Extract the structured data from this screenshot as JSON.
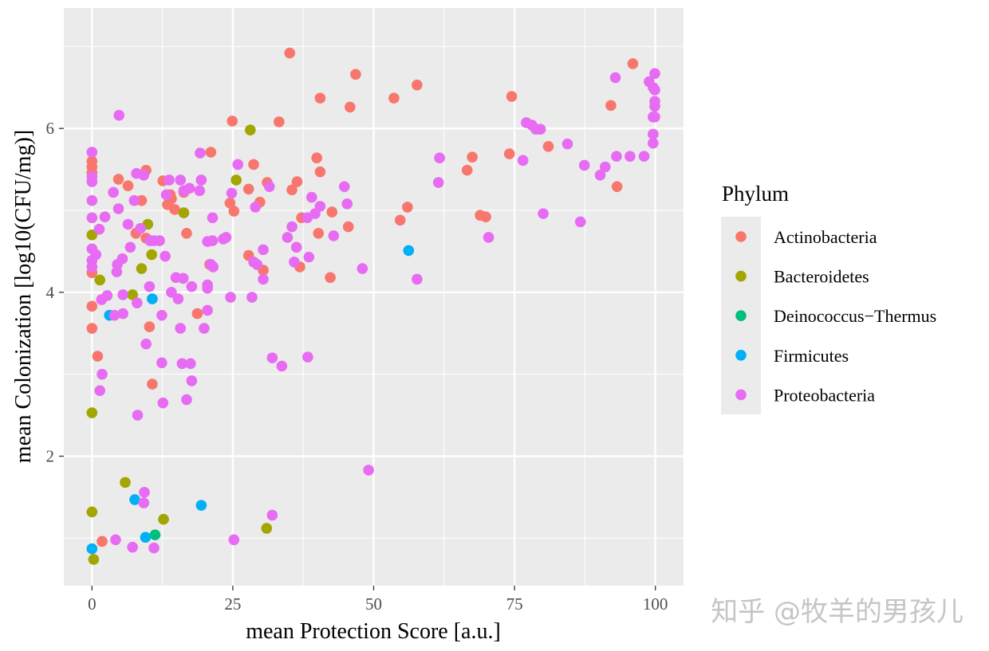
{
  "chart_data": {
    "type": "scatter",
    "title": "",
    "xlabel": "mean Protection Score [a.u.]",
    "ylabel": "mean Colonization [log10(CFU/mg)]",
    "xlim": [
      -5,
      105
    ],
    "ylim": [
      0.42,
      7.47
    ],
    "xticks": [
      0,
      25,
      50,
      75,
      100
    ],
    "xtick_labels": [
      "0",
      "25",
      "50",
      "75",
      "100"
    ],
    "yticks": [
      2,
      4,
      6
    ],
    "ytick_labels": [
      "2",
      "4",
      "6"
    ],
    "grid": true,
    "background": "#EBEBEB",
    "legend": {
      "title": "Phylum",
      "placement": "right"
    },
    "series": [
      {
        "name": "Actinobacteria",
        "color": "#F8766D",
        "points": [
          [
            0,
            5.6
          ],
          [
            0,
            5.53
          ],
          [
            0,
            5.46
          ],
          [
            0,
            4.24
          ],
          [
            0,
            3.83
          ],
          [
            0,
            3.56
          ],
          [
            1.0,
            3.22
          ],
          [
            1.8,
            0.96
          ],
          [
            4.7,
            5.38
          ],
          [
            6.4,
            5.3
          ],
          [
            8.8,
            5.12
          ],
          [
            9.6,
            5.49
          ],
          [
            7.8,
            4.72
          ],
          [
            9.6,
            4.66
          ],
          [
            12.6,
            5.36
          ],
          [
            13.9,
            5.19
          ],
          [
            14.1,
            5.14
          ],
          [
            13.4,
            5.07
          ],
          [
            14.7,
            5.01
          ],
          [
            16.3,
            5.22
          ],
          [
            16.8,
            4.72
          ],
          [
            21.1,
            5.71
          ],
          [
            20.9,
            4.34
          ],
          [
            24.5,
            5.09
          ],
          [
            25.2,
            4.99
          ],
          [
            24.9,
            6.09
          ],
          [
            10.2,
            3.58
          ],
          [
            18.7,
            3.74
          ],
          [
            10.7,
            2.88
          ],
          [
            28.7,
            5.56
          ],
          [
            27.8,
            5.26
          ],
          [
            27.8,
            4.45
          ],
          [
            29.8,
            5.1
          ],
          [
            30.4,
            4.27
          ],
          [
            31.1,
            5.34
          ],
          [
            33.2,
            6.08
          ],
          [
            35.1,
            6.92
          ],
          [
            36.4,
            5.35
          ],
          [
            35.5,
            5.25
          ],
          [
            37.2,
            4.91
          ],
          [
            36.9,
            4.31
          ],
          [
            39.9,
            5.64
          ],
          [
            40.5,
            5.47
          ],
          [
            40.2,
            4.72
          ],
          [
            40.5,
            6.37
          ],
          [
            42.6,
            4.98
          ],
          [
            42.3,
            4.18
          ],
          [
            45.5,
            4.8
          ],
          [
            45.8,
            6.26
          ],
          [
            46.8,
            6.66
          ],
          [
            53.6,
            6.37
          ],
          [
            54.7,
            4.88
          ],
          [
            56.0,
            5.04
          ],
          [
            57.7,
            6.53
          ],
          [
            66.6,
            5.49
          ],
          [
            67.5,
            5.65
          ],
          [
            68.9,
            4.94
          ],
          [
            69.9,
            4.92
          ],
          [
            74.1,
            5.69
          ],
          [
            74.5,
            6.39
          ],
          [
            81.0,
            5.78
          ],
          [
            92.1,
            6.28
          ],
          [
            93.2,
            5.29
          ],
          [
            96.0,
            6.79
          ]
        ]
      },
      {
        "name": "Bacteroidetes",
        "color": "#A3A500",
        "points": [
          [
            0,
            4.7
          ],
          [
            1.4,
            4.15
          ],
          [
            0,
            2.53
          ],
          [
            0,
            1.32
          ],
          [
            0.3,
            0.74
          ],
          [
            5.9,
            1.68
          ],
          [
            7.2,
            3.97
          ],
          [
            8.8,
            4.29
          ],
          [
            9.9,
            4.83
          ],
          [
            10.6,
            4.46
          ],
          [
            16.3,
            4.97
          ],
          [
            12.7,
            1.23
          ],
          [
            25.6,
            5.37
          ],
          [
            28.1,
            5.98
          ],
          [
            31.0,
            1.12
          ]
        ]
      },
      {
        "name": "Deinococcus−Thermus",
        "color": "#00BF7D",
        "points": [
          [
            11.2,
            1.04
          ]
        ]
      },
      {
        "name": "Firmicutes",
        "color": "#00B0F6",
        "points": [
          [
            0,
            0.87
          ],
          [
            3.1,
            3.72
          ],
          [
            7.6,
            1.47
          ],
          [
            9.5,
            1.01
          ],
          [
            10.7,
            3.92
          ],
          [
            19.4,
            1.4
          ],
          [
            56.2,
            4.51
          ]
        ]
      },
      {
        "name": "Proteobacteria",
        "color": "#E76BF3",
        "points": [
          [
            0,
            5.71
          ],
          [
            0,
            5.41
          ],
          [
            0,
            5.35
          ],
          [
            0,
            5.12
          ],
          [
            0,
            4.91
          ],
          [
            0,
            4.53
          ],
          [
            0.7,
            4.46
          ],
          [
            0,
            4.39
          ],
          [
            0,
            4.31
          ],
          [
            1.3,
            4.77
          ],
          [
            2.3,
            4.92
          ],
          [
            4.8,
            6.16
          ],
          [
            3.8,
            5.22
          ],
          [
            4.7,
            5.02
          ],
          [
            5.4,
            4.41
          ],
          [
            4.5,
            4.34
          ],
          [
            4.4,
            4.25
          ],
          [
            6.4,
            4.83
          ],
          [
            6.8,
            4.55
          ],
          [
            7.5,
            5.12
          ],
          [
            7.9,
            5.45
          ],
          [
            9.2,
            5.43
          ],
          [
            8.6,
            4.78
          ],
          [
            10.3,
            4.63
          ],
          [
            11.0,
            4.63
          ],
          [
            12.0,
            4.63
          ],
          [
            13.0,
            4.44
          ],
          [
            13.7,
            5.37
          ],
          [
            13.2,
            5.19
          ],
          [
            15.7,
            5.37
          ],
          [
            16.3,
            5.24
          ],
          [
            17.3,
            5.27
          ],
          [
            19.2,
            5.7
          ],
          [
            19.4,
            5.37
          ],
          [
            19.1,
            5.24
          ],
          [
            21.4,
            4.91
          ],
          [
            20.5,
            4.62
          ],
          [
            21.4,
            4.63
          ],
          [
            23.3,
            4.65
          ],
          [
            23.8,
            4.67
          ],
          [
            21.1,
            4.34
          ],
          [
            21.5,
            4.31
          ],
          [
            24.8,
            5.21
          ],
          [
            25.9,
            5.56
          ],
          [
            14.9,
            4.18
          ],
          [
            16.2,
            4.17
          ],
          [
            17.7,
            4.07
          ],
          [
            20.5,
            4.09
          ],
          [
            20.5,
            4.05
          ],
          [
            14.1,
            4.0
          ],
          [
            15.3,
            3.92
          ],
          [
            1.7,
            3.91
          ],
          [
            2.7,
            3.96
          ],
          [
            4.0,
            3.72
          ],
          [
            5.5,
            3.97
          ],
          [
            8.0,
            3.87
          ],
          [
            5.5,
            3.74
          ],
          [
            12.4,
            3.72
          ],
          [
            10.2,
            4.07
          ],
          [
            20.5,
            3.78
          ],
          [
            19.9,
            3.56
          ],
          [
            15.7,
            3.56
          ],
          [
            9.6,
            3.37
          ],
          [
            12.4,
            3.14
          ],
          [
            16.0,
            3.13
          ],
          [
            17.5,
            3.13
          ],
          [
            1.8,
            3.0
          ],
          [
            17.7,
            2.92
          ],
          [
            1.4,
            2.8
          ],
          [
            16.8,
            2.69
          ],
          [
            12.6,
            2.65
          ],
          [
            8.1,
            2.5
          ],
          [
            9.3,
            1.56
          ],
          [
            9.2,
            1.43
          ],
          [
            4.2,
            0.98
          ],
          [
            7.2,
            0.89
          ],
          [
            11.0,
            0.88
          ],
          [
            25.2,
            0.98
          ],
          [
            32.0,
            1.28
          ],
          [
            32.0,
            3.2
          ],
          [
            33.7,
            3.1
          ],
          [
            38.3,
            3.21
          ],
          [
            49.1,
            1.83
          ],
          [
            24.6,
            3.94
          ],
          [
            28.4,
            3.94
          ],
          [
            28.7,
            4.37
          ],
          [
            29.3,
            4.34
          ],
          [
            30.4,
            4.16
          ],
          [
            30.4,
            4.52
          ],
          [
            29.0,
            5.04
          ],
          [
            31.5,
            5.29
          ],
          [
            34.7,
            4.67
          ],
          [
            36.3,
            4.55
          ],
          [
            35.9,
            4.37
          ],
          [
            35.5,
            4.8
          ],
          [
            38.5,
            4.43
          ],
          [
            38.2,
            4.91
          ],
          [
            39.0,
            5.16
          ],
          [
            39.6,
            4.96
          ],
          [
            40.5,
            5.05
          ],
          [
            42.9,
            4.69
          ],
          [
            44.8,
            5.29
          ],
          [
            45.3,
            5.08
          ],
          [
            48.0,
            4.29
          ],
          [
            57.7,
            4.16
          ],
          [
            61.5,
            5.34
          ],
          [
            61.7,
            5.64
          ],
          [
            70.4,
            4.67
          ],
          [
            76.5,
            5.61
          ],
          [
            77.1,
            6.07
          ],
          [
            78.1,
            6.04
          ],
          [
            78.8,
            5.99
          ],
          [
            79.6,
            5.99
          ],
          [
            80.1,
            4.96
          ],
          [
            84.4,
            5.81
          ],
          [
            86.7,
            4.86
          ],
          [
            87.4,
            5.55
          ],
          [
            90.2,
            5.43
          ],
          [
            91.1,
            5.53
          ],
          [
            93.1,
            5.66
          ],
          [
            92.9,
            6.62
          ],
          [
            95.5,
            5.66
          ],
          [
            98.0,
            5.66
          ],
          [
            98.9,
            6.57
          ],
          [
            99.6,
            6.5
          ],
          [
            99.9,
            6.67
          ],
          [
            99.9,
            6.47
          ],
          [
            99.9,
            6.33
          ],
          [
            99.9,
            6.27
          ],
          [
            99.6,
            6.14
          ],
          [
            99.9,
            6.14
          ],
          [
            99.6,
            5.93
          ],
          [
            99.6,
            5.82
          ]
        ]
      }
    ]
  },
  "watermark": "知乎 @牧羊的男孩儿"
}
